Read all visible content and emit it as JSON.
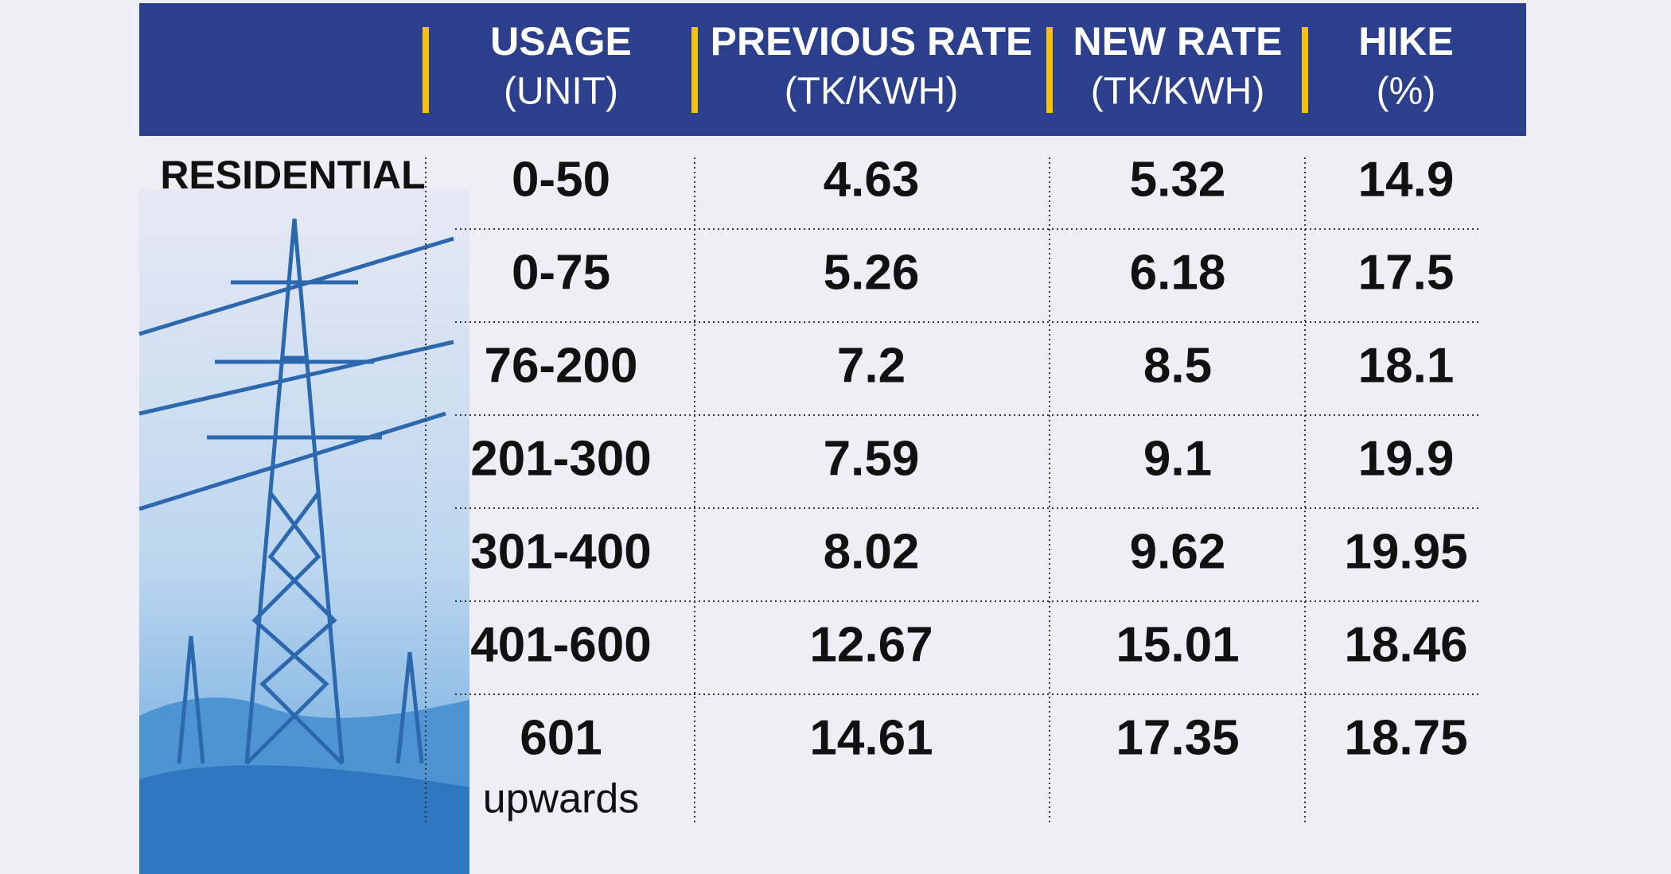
{
  "header": {
    "columns": [
      {
        "title": "USAGE",
        "unit": "(UNIT)"
      },
      {
        "title": "PREVIOUS RATE",
        "unit": "(TK/KWH)"
      },
      {
        "title": "NEW RATE",
        "unit": "(TK/KWH)"
      },
      {
        "title": "HIKE",
        "unit": "(%)"
      }
    ]
  },
  "table": {
    "row_label": "RESIDENTIAL",
    "rows": [
      [
        "0-50",
        "4.63",
        "5.32",
        "14.9"
      ],
      [
        "0-75",
        "5.26",
        "6.18",
        "17.5"
      ],
      [
        "76-200",
        "7.2",
        "8.5",
        "18.1"
      ],
      [
        "201-300",
        "7.59",
        "9.1",
        "19.9"
      ],
      [
        "301-400",
        "8.02",
        "9.62",
        "19.95"
      ],
      [
        "401-600",
        "12.67",
        "15.01",
        "18.46"
      ],
      [
        {
          "main": "601",
          "sub": "upwards"
        },
        "14.61",
        "17.35",
        "18.75"
      ]
    ]
  }
}
